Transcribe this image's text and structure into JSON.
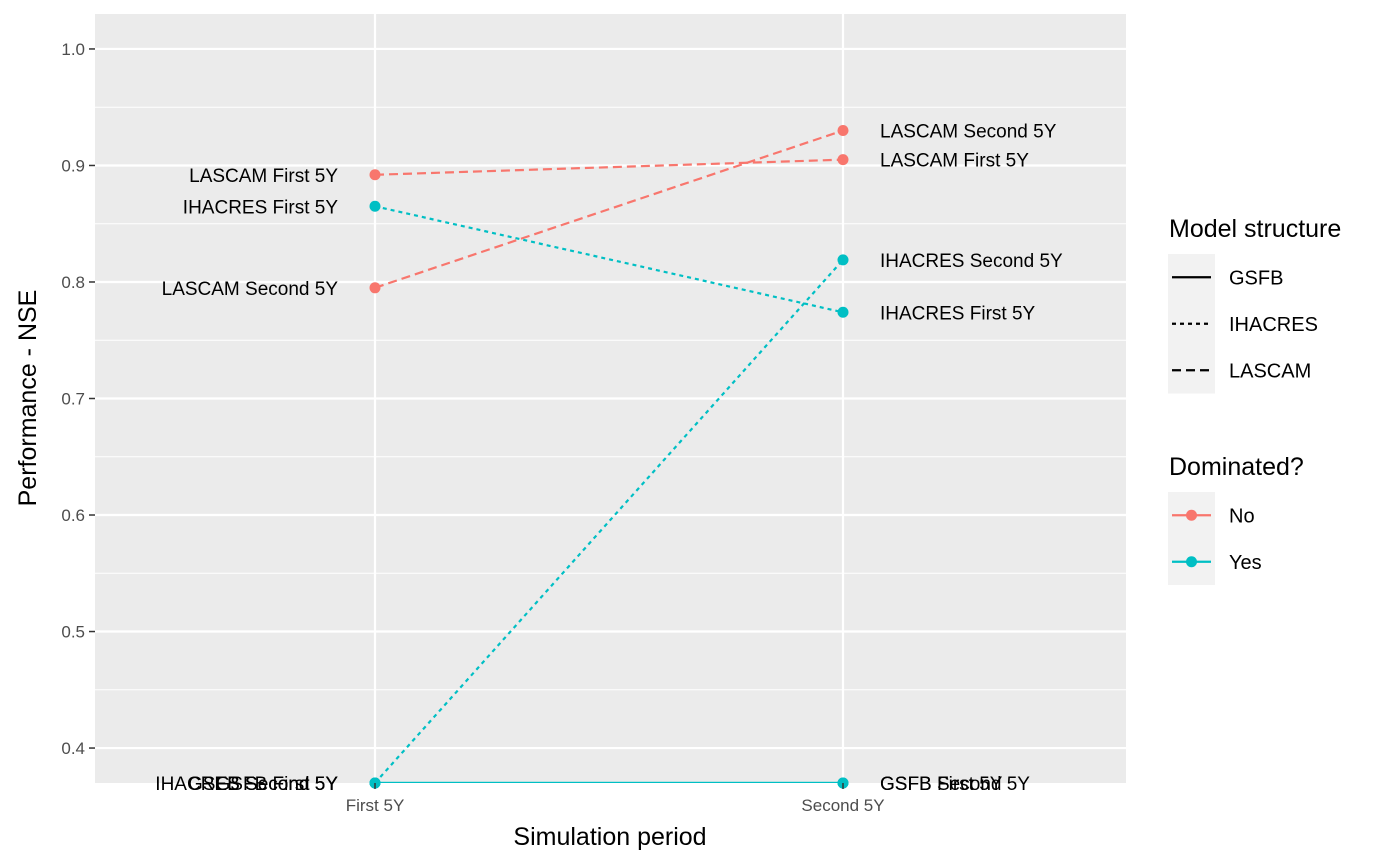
{
  "chart_data": {
    "type": "line",
    "xlabel": "Simulation period",
    "ylabel": "Performance - NSE",
    "categories": [
      "First 5Y",
      "Second 5Y"
    ],
    "ylim": [
      0.37,
      1.03
    ],
    "yticks": [
      0.4,
      0.5,
      0.6,
      0.7,
      0.8,
      0.9,
      1.0
    ],
    "ytick_labels": [
      "0.4",
      "0.5",
      "0.6",
      "0.7",
      "0.8",
      "0.9",
      "1.0"
    ],
    "grid": true,
    "legend_position": "right",
    "colors": {
      "No": "#f8766d",
      "Yes": "#00bfc4"
    },
    "legends": [
      {
        "title": "Model structure",
        "type": "linetype",
        "items": [
          {
            "label": "GSFB",
            "dash": "solid"
          },
          {
            "label": "IHACRES",
            "dash": "dotted"
          },
          {
            "label": "LASCAM",
            "dash": "dashed"
          }
        ]
      },
      {
        "title": "Dominated?",
        "type": "color",
        "items": [
          {
            "label": "No",
            "color": "#f8766d"
          },
          {
            "label": "Yes",
            "color": "#00bfc4"
          }
        ]
      }
    ],
    "series": [
      {
        "structure": "LASCAM",
        "dash": "dashed",
        "points": [
          {
            "x": "First 5Y",
            "y": 0.892,
            "dominated": "No",
            "label": "LASCAM First 5Y"
          },
          {
            "x": "Second 5Y",
            "y": 0.905,
            "dominated": "No",
            "label": "LASCAM First 5Y"
          }
        ]
      },
      {
        "structure": "LASCAM",
        "dash": "dashed",
        "points": [
          {
            "x": "First 5Y",
            "y": 0.795,
            "dominated": "No",
            "label": "LASCAM Second 5Y"
          },
          {
            "x": "Second 5Y",
            "y": 0.93,
            "dominated": "No",
            "label": "LASCAM Second 5Y"
          }
        ]
      },
      {
        "structure": "IHACRES",
        "dash": "dotted",
        "points": [
          {
            "x": "First 5Y",
            "y": 0.865,
            "dominated": "Yes",
            "label": "IHACRES First 5Y"
          },
          {
            "x": "Second 5Y",
            "y": 0.774,
            "dominated": "Yes",
            "label": "IHACRES First 5Y"
          }
        ]
      },
      {
        "structure": "IHACRES",
        "dash": "dotted",
        "points": [
          {
            "x": "First 5Y",
            "y": 0.37,
            "dominated": "Yes",
            "label": "IHACRES Second 5Y"
          },
          {
            "x": "Second 5Y",
            "y": 0.819,
            "dominated": "Yes",
            "label": "IHACRES Second 5Y"
          }
        ]
      },
      {
        "structure": "GSFB",
        "dash": "solid",
        "points": [
          {
            "x": "First 5Y",
            "y": 0.37,
            "dominated": "Yes",
            "label": "GSFB First 5Y"
          },
          {
            "x": "Second 5Y",
            "y": 0.37,
            "dominated": "Yes",
            "label": "GSFB First 5Y"
          }
        ]
      },
      {
        "structure": "GSFB",
        "dash": "solid",
        "points": [
          {
            "x": "First 5Y",
            "y": 0.37,
            "dominated": "Yes",
            "label": "GSFB Second 5Y"
          },
          {
            "x": "Second 5Y",
            "y": 0.37,
            "dominated": "Yes",
            "label": "GSFB Second 5Y"
          }
        ]
      }
    ]
  }
}
